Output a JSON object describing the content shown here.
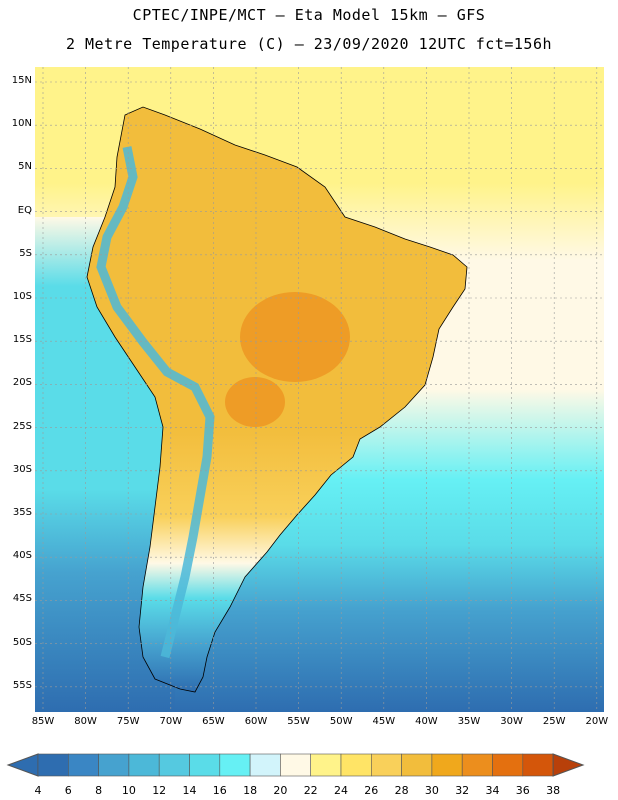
{
  "title_line1": "CPTEC/INPE/MCT –  Eta Model 15km – GFS",
  "title_line2": "2 Metre Temperature (C) – 23/09/2020 12UTC fct=156h",
  "lat_labels": [
    "15N",
    "10N",
    "5N",
    "EQ",
    "5S",
    "10S",
    "15S",
    "20S",
    "25S",
    "30S",
    "35S",
    "40S",
    "45S",
    "50S",
    "55S"
  ],
  "lon_labels": [
    "85W",
    "80W",
    "75W",
    "70W",
    "65W",
    "60W",
    "55W",
    "50W",
    "45W",
    "40W",
    "35W",
    "30W",
    "25W",
    "20W"
  ],
  "colorbar": {
    "ticks": [
      "4",
      "6",
      "8",
      "10",
      "12",
      "14",
      "16",
      "18",
      "20",
      "22",
      "24",
      "26",
      "28",
      "30",
      "32",
      "34",
      "36",
      "38"
    ],
    "low_color": "#2e6db0",
    "high_color": "#b8400a",
    "colors": [
      "#2e6db0",
      "#3a86c4",
      "#46a2cf",
      "#4cb8d8",
      "#55c9e0",
      "#5adce8",
      "#66f0f4",
      "#d2f4fb",
      "#fff9e6",
      "#fff38a",
      "#ffe466",
      "#f9d05a",
      "#f2bd3c",
      "#f0a81c",
      "#ec8e1d",
      "#e4700f",
      "#d4560a",
      "#b8400a"
    ]
  },
  "field_colors": {
    "ocean_cold": "#2e6db0",
    "ocean_mid": "#46a2cf",
    "ocean_cool": "#5adce8",
    "ocean_cyan": "#66f0f4",
    "ocean_warm": "#fff38a",
    "ocean_pale": "#fff9e6",
    "land_hot": "#f2bd3c",
    "land_hotter": "#ec8e1d",
    "land_warm": "#f9d05a",
    "andes": "#4cb8d8",
    "coast": "#000000",
    "grid": "#9a9a9a"
  }
}
